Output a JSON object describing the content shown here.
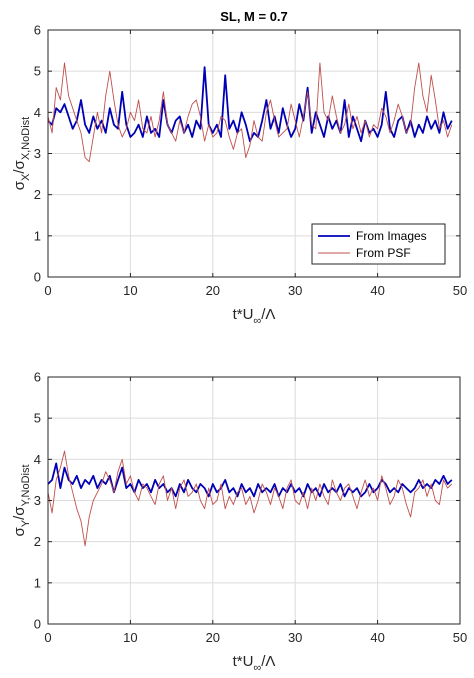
{
  "chart_data": [
    {
      "type": "line",
      "title": "SL, M = 0.7",
      "xlabel": {
        "base": "t*U",
        "sub": "∞",
        "tail": "/Λ"
      },
      "ylabel": {
        "sigma1": "σ",
        "sub1": "X",
        "slash": "/",
        "sigma2": "σ",
        "sub2": "X,NoDist"
      },
      "xlim": [
        0,
        50
      ],
      "ylim": [
        0,
        6
      ],
      "xticks": [
        "0",
        "10",
        "20",
        "30",
        "40",
        "50"
      ],
      "yticks": [
        "0",
        "1",
        "2",
        "3",
        "4",
        "5",
        "6"
      ],
      "grid": true,
      "legend": "bottom-right",
      "series": [
        {
          "name": "From Images",
          "color": "#0000b4",
          "x": [
            0,
            0.5,
            1,
            1.5,
            2,
            2.5,
            3,
            3.5,
            4,
            4.5,
            5,
            5.5,
            6,
            6.5,
            7,
            7.5,
            8,
            8.5,
            9,
            9.5,
            10,
            10.5,
            11,
            11.5,
            12,
            12.5,
            13,
            13.5,
            14,
            14.5,
            15,
            15.5,
            16,
            16.5,
            17,
            17.5,
            18,
            18.5,
            19,
            19.5,
            20,
            20.5,
            21,
            21.5,
            22,
            22.5,
            23,
            23.5,
            24,
            24.5,
            25,
            25.5,
            26,
            26.5,
            27,
            27.5,
            28,
            28.5,
            29,
            29.5,
            30,
            30.5,
            31,
            31.5,
            32,
            32.5,
            33,
            33.5,
            34,
            34.5,
            35,
            35.5,
            36,
            36.5,
            37,
            37.5,
            38,
            38.5,
            39,
            39.5,
            40,
            40.5,
            41,
            41.5,
            42,
            42.5,
            43,
            43.5,
            44,
            44.5,
            45,
            45.5,
            46,
            46.5,
            47,
            47.5,
            48,
            48.5,
            49
          ],
          "y": [
            3.8,
            3.7,
            4.1,
            4.0,
            4.2,
            3.9,
            3.6,
            3.8,
            4.3,
            3.7,
            3.5,
            3.9,
            3.6,
            3.8,
            3.5,
            4.1,
            3.7,
            3.6,
            4.5,
            3.7,
            3.4,
            3.5,
            3.7,
            3.4,
            3.9,
            3.5,
            3.6,
            3.4,
            4.3,
            3.7,
            3.5,
            3.8,
            3.9,
            3.5,
            3.7,
            3.4,
            3.8,
            3.6,
            5.1,
            3.7,
            3.5,
            3.7,
            3.4,
            4.9,
            3.6,
            3.8,
            3.5,
            4.0,
            3.7,
            3.3,
            3.5,
            3.4,
            3.8,
            4.3,
            3.6,
            3.9,
            3.5,
            4.1,
            3.7,
            3.4,
            3.6,
            4.2,
            3.8,
            4.6,
            3.5,
            4.0,
            3.7,
            3.4,
            3.9,
            3.6,
            3.8,
            3.5,
            4.3,
            3.4,
            3.9,
            3.6,
            3.3,
            3.8,
            3.5,
            3.6,
            3.4,
            3.7,
            4.5,
            3.6,
            3.4,
            3.8,
            3.9,
            3.5,
            3.8,
            3.4,
            3.7,
            3.5,
            3.9,
            3.6,
            3.8,
            3.5,
            4.0,
            3.6,
            3.8
          ]
        },
        {
          "name": "From PSF",
          "color": "#c0504d",
          "x": [
            0,
            0.5,
            1,
            1.5,
            2,
            2.5,
            3,
            3.5,
            4,
            4.5,
            5,
            5.5,
            6,
            6.5,
            7,
            7.5,
            8,
            8.5,
            9,
            9.5,
            10,
            10.5,
            11,
            11.5,
            12,
            12.5,
            13,
            13.5,
            14,
            14.5,
            15,
            15.5,
            16,
            16.5,
            17,
            17.5,
            18,
            18.5,
            19,
            19.5,
            20,
            20.5,
            21,
            21.5,
            22,
            22.5,
            23,
            23.5,
            24,
            24.5,
            25,
            25.5,
            26,
            26.5,
            27,
            27.5,
            28,
            28.5,
            29,
            29.5,
            30,
            30.5,
            31,
            31.5,
            32,
            32.5,
            33,
            33.5,
            34,
            34.5,
            35,
            35.5,
            36,
            36.5,
            37,
            37.5,
            38,
            38.5,
            39,
            39.5,
            40,
            40.5,
            41,
            41.5,
            42,
            42.5,
            43,
            43.5,
            44,
            44.5,
            45,
            45.5,
            46,
            46.5,
            47,
            47.5,
            48,
            48.5,
            49
          ],
          "y": [
            3.9,
            3.5,
            4.6,
            4.3,
            5.2,
            4.4,
            4.1,
            3.8,
            3.5,
            2.9,
            2.8,
            3.4,
            4.0,
            3.5,
            4.4,
            5.0,
            4.3,
            3.7,
            3.4,
            3.6,
            4.0,
            3.8,
            4.3,
            3.6,
            3.5,
            3.9,
            3.4,
            3.8,
            4.5,
            3.7,
            3.5,
            3.3,
            3.8,
            3.5,
            3.9,
            4.2,
            4.3,
            3.9,
            3.3,
            3.7,
            3.4,
            3.5,
            3.9,
            3.8,
            3.4,
            3.1,
            3.5,
            3.6,
            2.9,
            3.2,
            3.8,
            3.4,
            3.3,
            4.0,
            4.3,
            3.8,
            3.4,
            3.5,
            3.6,
            4.2,
            3.8,
            3.4,
            3.9,
            4.5,
            3.7,
            3.6,
            5.2,
            4.0,
            3.8,
            4.4,
            3.9,
            3.5,
            3.7,
            4.2,
            3.6,
            3.9,
            3.5,
            3.8,
            3.4,
            3.7,
            3.6,
            4.1,
            3.9,
            3.5,
            3.8,
            4.2,
            3.9,
            3.5,
            3.7,
            4.6,
            5.2,
            4.4,
            4.0,
            4.9,
            4.3,
            3.6,
            3.8,
            3.4,
            3.7
          ]
        }
      ]
    },
    {
      "type": "line",
      "title": "",
      "xlabel": {
        "base": "t*U",
        "sub": "∞",
        "tail": "/Λ"
      },
      "ylabel": {
        "sigma1": "σ",
        "sub1": "Y",
        "slash": "/",
        "sigma2": "σ",
        "sub2": "Y,NoDist"
      },
      "xlim": [
        0,
        50
      ],
      "ylim": [
        0,
        6
      ],
      "xticks": [
        "0",
        "10",
        "20",
        "30",
        "40",
        "50"
      ],
      "yticks": [
        "0",
        "1",
        "2",
        "3",
        "4",
        "5",
        "6"
      ],
      "grid": true,
      "legend": "none",
      "series": [
        {
          "color": "#0000b4",
          "x": [
            0,
            0.5,
            1,
            1.5,
            2,
            2.5,
            3,
            3.5,
            4,
            4.5,
            5,
            5.5,
            6,
            6.5,
            7,
            7.5,
            8,
            8.5,
            9,
            9.5,
            10,
            10.5,
            11,
            11.5,
            12,
            12.5,
            13,
            13.5,
            14,
            14.5,
            15,
            15.5,
            16,
            16.5,
            17,
            17.5,
            18,
            18.5,
            19,
            19.5,
            20,
            20.5,
            21,
            21.5,
            22,
            22.5,
            23,
            23.5,
            24,
            24.5,
            25,
            25.5,
            26,
            26.5,
            27,
            27.5,
            28,
            28.5,
            29,
            29.5,
            30,
            30.5,
            31,
            31.5,
            32,
            32.5,
            33,
            33.5,
            34,
            34.5,
            35,
            35.5,
            36,
            36.5,
            37,
            37.5,
            38,
            38.5,
            39,
            39.5,
            40,
            40.5,
            41,
            41.5,
            42,
            42.5,
            43,
            43.5,
            44,
            44.5,
            45,
            45.5,
            46,
            46.5,
            47,
            47.5,
            48,
            48.5,
            49
          ],
          "y": [
            3.4,
            3.5,
            3.9,
            3.3,
            3.8,
            3.5,
            3.4,
            3.6,
            3.3,
            3.5,
            3.4,
            3.6,
            3.3,
            3.5,
            3.4,
            3.6,
            3.2,
            3.5,
            3.8,
            3.3,
            3.4,
            3.2,
            3.5,
            3.3,
            3.4,
            3.2,
            3.5,
            3.3,
            3.4,
            3.2,
            3.3,
            3.1,
            3.4,
            3.2,
            3.5,
            3.3,
            3.2,
            3.4,
            3.3,
            3.1,
            3.4,
            3.2,
            3.3,
            3.5,
            3.2,
            3.3,
            3.1,
            3.4,
            3.2,
            3.3,
            3.1,
            3.4,
            3.2,
            3.3,
            3.2,
            3.4,
            3.1,
            3.3,
            3.2,
            3.4,
            3.2,
            3.3,
            3.1,
            3.4,
            3.2,
            3.3,
            3.1,
            3.4,
            3.2,
            3.3,
            3.2,
            3.4,
            3.1,
            3.3,
            3.2,
            3.3,
            3.1,
            3.2,
            3.4,
            3.2,
            3.3,
            3.5,
            3.4,
            3.2,
            3.3,
            3.2,
            3.4,
            3.3,
            3.2,
            3.3,
            3.5,
            3.3,
            3.4,
            3.3,
            3.5,
            3.4,
            3.6,
            3.4,
            3.5
          ]
        },
        {
          "color": "#c0504d",
          "x": [
            0,
            0.5,
            1,
            1.5,
            2,
            2.5,
            3,
            3.5,
            4,
            4.5,
            5,
            5.5,
            6,
            6.5,
            7,
            7.5,
            8,
            8.5,
            9,
            9.5,
            10,
            10.5,
            11,
            11.5,
            12,
            12.5,
            13,
            13.5,
            14,
            14.5,
            15,
            15.5,
            16,
            16.5,
            17,
            17.5,
            18,
            18.5,
            19,
            19.5,
            20,
            20.5,
            21,
            21.5,
            22,
            22.5,
            23,
            23.5,
            24,
            24.5,
            25,
            25.5,
            26,
            26.5,
            27,
            27.5,
            28,
            28.5,
            29,
            29.5,
            30,
            30.5,
            31,
            31.5,
            32,
            32.5,
            33,
            33.5,
            34,
            34.5,
            35,
            35.5,
            36,
            36.5,
            37,
            37.5,
            38,
            38.5,
            39,
            39.5,
            40,
            40.5,
            41,
            41.5,
            42,
            42.5,
            43,
            43.5,
            44,
            44.5,
            45,
            45.5,
            46,
            46.5,
            47,
            47.5,
            48,
            48.5,
            49
          ],
          "y": [
            3.2,
            2.7,
            3.5,
            3.8,
            4.2,
            3.6,
            3.2,
            2.8,
            2.5,
            1.9,
            2.6,
            3.0,
            3.2,
            3.4,
            3.7,
            3.5,
            3.2,
            3.7,
            4.0,
            3.4,
            3.6,
            3.2,
            3.0,
            3.4,
            3.3,
            3.1,
            2.9,
            3.4,
            3.6,
            3.0,
            3.3,
            2.8,
            3.3,
            3.5,
            3.1,
            3.2,
            3.4,
            3.0,
            2.8,
            3.3,
            2.9,
            3.0,
            3.4,
            2.8,
            3.1,
            2.9,
            3.2,
            3.3,
            2.9,
            3.1,
            2.7,
            3.0,
            3.4,
            3.2,
            2.9,
            3.3,
            3.1,
            2.8,
            3.3,
            3.5,
            3.0,
            2.9,
            3.2,
            2.8,
            3.3,
            3.0,
            3.4,
            3.1,
            2.9,
            3.5,
            3.2,
            3.0,
            3.3,
            3.4,
            3.1,
            2.8,
            3.2,
            3.5,
            3.1,
            3.3,
            3.0,
            3.6,
            3.3,
            2.9,
            3.1,
            3.5,
            3.3,
            2.9,
            2.6,
            3.2,
            3.3,
            3.5,
            3.1,
            3.4,
            3.0,
            2.9,
            3.5,
            3.3,
            3.4
          ]
        }
      ]
    }
  ]
}
